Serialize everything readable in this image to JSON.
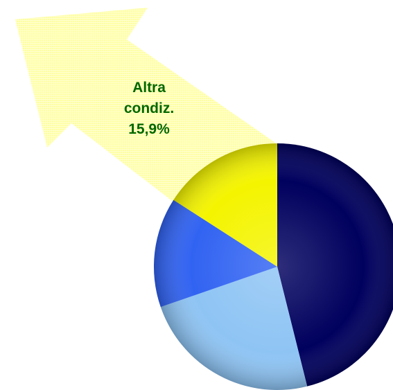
{
  "chart_data": {
    "type": "pie",
    "categories": [
      null,
      null,
      null,
      "Altra condiz."
    ],
    "values": [
      46.1,
      23.6,
      14.4,
      15.9
    ],
    "value_labels": [
      null,
      null,
      null,
      "15,9%"
    ],
    "colors": [
      "#00005e",
      "#8ec4f4",
      "#3163f2",
      "#f4f400"
    ]
  }
}
